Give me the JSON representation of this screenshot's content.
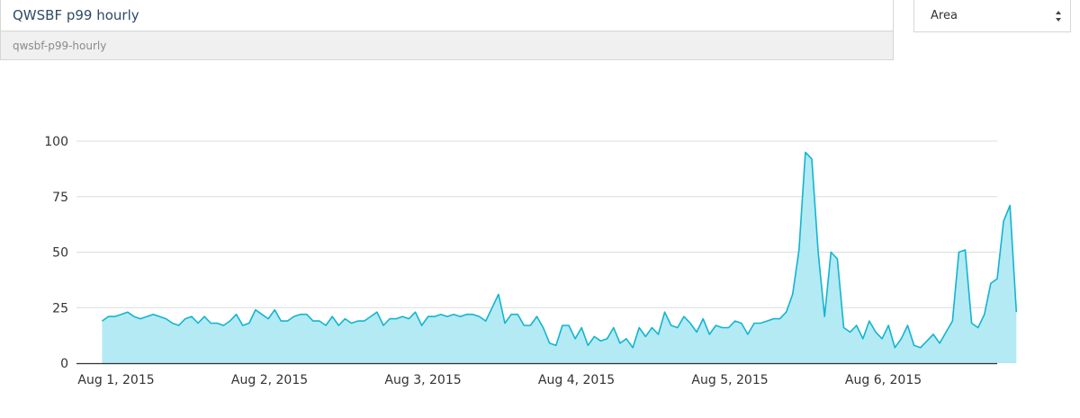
{
  "query": {
    "name": "QWSBF p99 hourly",
    "slug": "qwsbf-p99-hourly"
  },
  "chart_type_select": {
    "selected": "Area"
  },
  "colors": {
    "series_line": "#12b5cf",
    "series_fill": "#b3eaf4",
    "grid": "#dcdcdc",
    "axis": "#333333"
  },
  "chart_data": {
    "type": "area",
    "title": "",
    "xlabel": "",
    "ylabel": "",
    "ylim": [
      0,
      100
    ],
    "grid": true,
    "legend": "none",
    "y_ticks": [
      {
        "value": 0,
        "label": "0"
      },
      {
        "value": 25,
        "label": "25"
      },
      {
        "value": 50,
        "label": "50"
      },
      {
        "value": 75,
        "label": "75"
      },
      {
        "value": 100,
        "label": "100"
      }
    ],
    "x_ticks": [
      {
        "value": 2.2,
        "label": "Aug 1, 2015"
      },
      {
        "value": 26.2,
        "label": "Aug 2, 2015"
      },
      {
        "value": 50.2,
        "label": "Aug 3, 2015"
      },
      {
        "value": 74.2,
        "label": "Aug 4, 2015"
      },
      {
        "value": 98.2,
        "label": "Aug 5, 2015"
      },
      {
        "value": 122.2,
        "label": "Aug 6, 2015"
      }
    ],
    "x_range": [
      -4,
      140
    ],
    "series": [
      {
        "values": [
          19,
          21,
          21,
          22,
          23,
          21,
          20,
          21,
          22,
          21,
          20,
          18,
          17,
          20,
          21,
          18,
          21,
          18,
          18,
          17,
          19,
          22,
          17,
          18,
          24,
          22,
          20,
          24,
          19,
          19,
          21,
          22,
          22,
          19,
          19,
          17,
          21,
          17,
          20,
          18,
          19,
          19,
          21,
          23,
          17,
          20,
          20,
          21,
          20,
          23,
          17,
          21,
          21,
          22,
          21,
          22,
          21,
          22,
          22,
          21,
          19,
          25,
          31,
          18,
          22,
          22,
          17,
          17,
          21,
          16,
          9,
          8,
          17,
          17,
          11,
          16,
          8,
          12,
          10,
          11,
          16,
          9,
          11,
          7,
          16,
          12,
          16,
          13,
          23,
          17,
          16,
          21,
          18,
          14,
          20,
          13,
          17,
          16,
          16,
          19,
          18,
          13,
          18,
          18,
          19,
          20,
          20,
          23,
          31,
          51,
          95,
          92,
          50,
          21,
          50,
          47,
          16,
          14,
          17,
          11,
          19,
          14,
          11,
          17,
          7,
          11,
          17,
          8,
          7,
          10,
          13,
          9,
          14,
          19,
          50,
          51,
          18,
          16,
          22,
          36,
          38,
          64,
          71,
          23
        ]
      }
    ]
  }
}
